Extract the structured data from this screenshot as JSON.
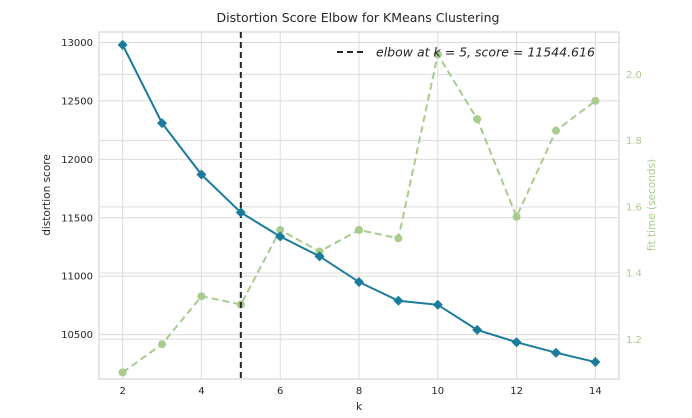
{
  "chart_data": {
    "type": "line",
    "title": "Distortion Score Elbow for KMeans Clustering",
    "xlabel": "k",
    "ylabel": "distortion score",
    "y2label": "fit time (seconds)",
    "x": [
      2,
      3,
      4,
      5,
      6,
      7,
      8,
      9,
      10,
      11,
      12,
      13,
      14
    ],
    "x_ticks": [
      "2",
      "4",
      "6",
      "8",
      "10",
      "12",
      "14"
    ],
    "x_tick_values": [
      2,
      4,
      6,
      8,
      10,
      12,
      14
    ],
    "xlim": [
      1.4,
      14.6
    ],
    "ylim": [
      10120,
      13090
    ],
    "y_ticks": [
      "10500",
      "11000",
      "11500",
      "12000",
      "12500",
      "13000"
    ],
    "y_tick_values": [
      10500,
      11000,
      11500,
      12000,
      12500,
      13000
    ],
    "y2lim": [
      1.08,
      2.128
    ],
    "y2_ticks": [
      "1.2",
      "1.4",
      "1.6",
      "1.8",
      "2.0"
    ],
    "y2_tick_values": [
      1.2,
      1.4,
      1.6,
      1.8,
      2.0
    ],
    "grid": true,
    "series": [
      {
        "role": "distortion",
        "axis": "left",
        "color": "#1a7b9c",
        "marker": "diamond",
        "values": [
          12980,
          12310,
          11870,
          11545,
          11340,
          11170,
          10950,
          10790,
          10755,
          10540,
          10435,
          10345,
          10265
        ]
      },
      {
        "role": "fit_time",
        "axis": "right",
        "color": "#a8cc8c",
        "marker": "circle",
        "dashed": true,
        "values": [
          1.1,
          1.185,
          1.33,
          1.305,
          1.53,
          1.465,
          1.53,
          1.505,
          2.06,
          1.865,
          1.57,
          1.83,
          1.92
        ]
      }
    ],
    "elbow": {
      "k": 5,
      "label": "elbow at k = 5, score = 11544.616",
      "color": "#262626"
    },
    "legend_placement": "top-right"
  }
}
